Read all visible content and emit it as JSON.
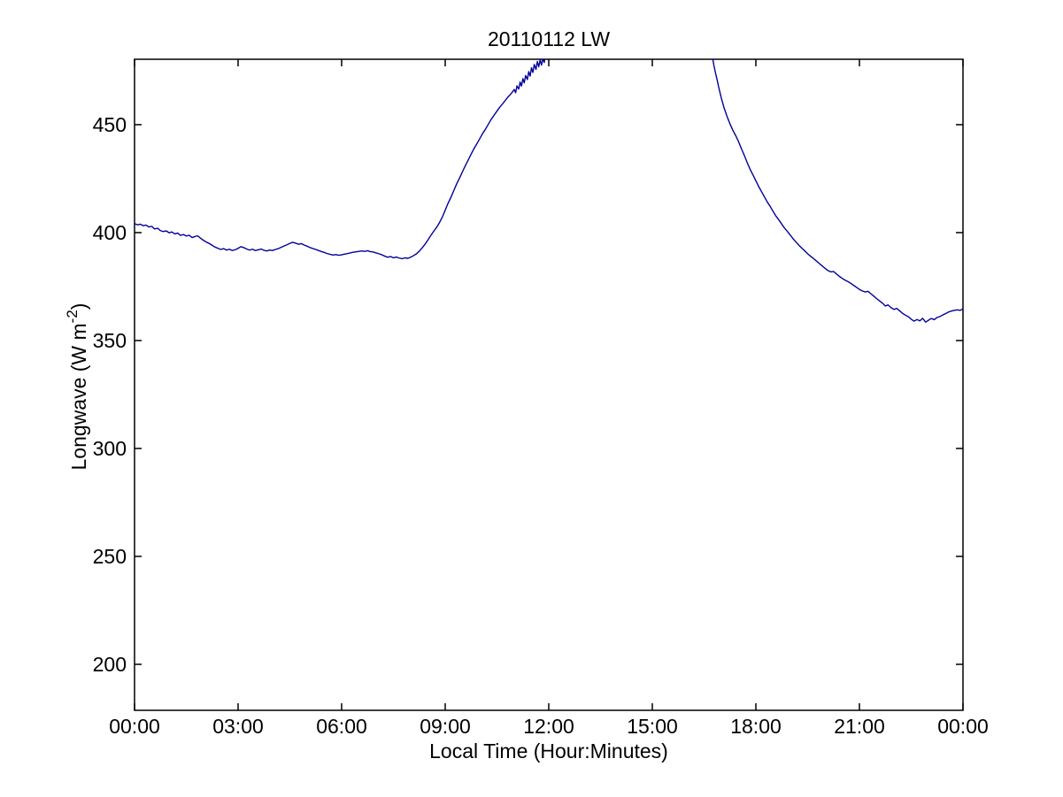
{
  "figure": {
    "background_color": "#ffffff",
    "axes_color": "#000000"
  },
  "chart_data": {
    "type": "line",
    "title": "20110112 LW",
    "xlabel": "Local Time (Hour:Minutes)",
    "ylabel": "Longwave (W m-2)",
    "ylabel_parts": {
      "main": "Longwave (W m",
      "sup": "-2",
      "close": ")"
    },
    "x_unit": "hours_local_time",
    "xlim": [
      0,
      24
    ],
    "ylim": [
      178.7,
      480.3
    ],
    "xticks": {
      "values": [
        0,
        3,
        6,
        9,
        12,
        15,
        18,
        21,
        24
      ],
      "labels": [
        "00:00",
        "03:00",
        "06:00",
        "09:00",
        "12:00",
        "15:00",
        "18:00",
        "21:00",
        "00:00"
      ]
    },
    "yticks": {
      "values": [
        200,
        250,
        300,
        350,
        400,
        450
      ],
      "labels": [
        "200",
        "250",
        "300",
        "350",
        "400",
        "450"
      ]
    },
    "grid": false,
    "legend": null,
    "box": true,
    "line_color": "#000099",
    "line_width": 1.4,
    "clipped_above_ymax": true,
    "clip_note": "curve rises above the y-axis maximum (~480) near 11:50 and re-enters near 16:45",
    "series": [
      {
        "name": "Longwave",
        "color": "#000099",
        "segments": [
          [
            [
              0.0,
              404.2
            ],
            [
              0.08,
              403.6
            ],
            [
              0.17,
              403.9
            ],
            [
              0.25,
              403.2
            ],
            [
              0.33,
              403.5
            ],
            [
              0.42,
              402.6
            ],
            [
              0.5,
              402.9
            ],
            [
              0.58,
              401.7
            ],
            [
              0.67,
              402.0
            ],
            [
              0.75,
              400.9
            ],
            [
              0.83,
              400.5
            ],
            [
              0.92,
              400.8
            ],
            [
              1.0,
              399.9
            ],
            [
              1.08,
              400.3
            ],
            [
              1.17,
              399.4
            ],
            [
              1.25,
              399.8
            ],
            [
              1.33,
              398.7
            ],
            [
              1.42,
              399.1
            ],
            [
              1.5,
              398.4
            ],
            [
              1.58,
              398.8
            ],
            [
              1.67,
              397.7
            ],
            [
              1.75,
              398.2
            ],
            [
              1.83,
              398.5
            ],
            [
              1.92,
              397.3
            ],
            [
              2.0,
              396.4
            ],
            [
              2.08,
              395.6
            ],
            [
              2.17,
              394.9
            ],
            [
              2.25,
              394.1
            ],
            [
              2.33,
              393.3
            ],
            [
              2.42,
              392.7
            ],
            [
              2.5,
              392.2
            ],
            [
              2.58,
              392.6
            ],
            [
              2.67,
              391.9
            ],
            [
              2.75,
              392.3
            ],
            [
              2.83,
              391.7
            ],
            [
              2.92,
              392.1
            ],
            [
              3.0,
              392.7
            ],
            [
              3.08,
              393.5
            ],
            [
              3.17,
              393.0
            ],
            [
              3.25,
              392.4
            ],
            [
              3.33,
              391.9
            ],
            [
              3.42,
              392.3
            ],
            [
              3.5,
              391.7
            ],
            [
              3.58,
              392.0
            ],
            [
              3.67,
              392.4
            ],
            [
              3.75,
              391.8
            ],
            [
              3.83,
              391.5
            ],
            [
              3.92,
              391.9
            ],
            [
              4.0,
              391.7
            ],
            [
              4.08,
              392.2
            ],
            [
              4.17,
              392.6
            ],
            [
              4.25,
              393.2
            ],
            [
              4.33,
              393.8
            ],
            [
              4.42,
              394.4
            ],
            [
              4.5,
              395.0
            ],
            [
              4.58,
              395.5
            ],
            [
              4.67,
              395.1
            ],
            [
              4.75,
              394.6
            ],
            [
              4.83,
              394.9
            ],
            [
              4.92,
              394.2
            ],
            [
              5.0,
              393.7
            ],
            [
              5.08,
              393.1
            ],
            [
              5.17,
              392.6
            ],
            [
              5.25,
              392.2
            ],
            [
              5.33,
              391.7
            ],
            [
              5.42,
              391.2
            ],
            [
              5.5,
              390.8
            ],
            [
              5.58,
              390.3
            ],
            [
              5.67,
              389.9
            ],
            [
              5.75,
              389.6
            ],
            [
              5.83,
              389.8
            ],
            [
              5.92,
              389.5
            ],
            [
              6.0,
              389.7
            ],
            [
              6.08,
              390.0
            ],
            [
              6.17,
              390.3
            ],
            [
              6.25,
              390.6
            ],
            [
              6.33,
              390.9
            ],
            [
              6.42,
              391.1
            ],
            [
              6.5,
              391.3
            ],
            [
              6.58,
              391.5
            ],
            [
              6.67,
              391.3
            ],
            [
              6.75,
              391.6
            ],
            [
              6.83,
              391.2
            ],
            [
              6.92,
              391.0
            ],
            [
              7.0,
              390.6
            ],
            [
              7.08,
              390.2
            ],
            [
              7.17,
              389.7
            ],
            [
              7.25,
              389.1
            ],
            [
              7.33,
              388.6
            ],
            [
              7.42,
              388.9
            ],
            [
              7.5,
              388.3
            ],
            [
              7.58,
              388.7
            ],
            [
              7.67,
              388.2
            ],
            [
              7.75,
              387.9
            ],
            [
              7.83,
              388.3
            ],
            [
              7.92,
              388.1
            ],
            [
              8.0,
              388.6
            ],
            [
              8.08,
              389.3
            ],
            [
              8.17,
              390.2
            ],
            [
              8.25,
              391.4
            ],
            [
              8.33,
              392.9
            ],
            [
              8.42,
              394.7
            ],
            [
              8.5,
              396.6
            ],
            [
              8.58,
              398.6
            ],
            [
              8.67,
              400.7
            ],
            [
              8.75,
              402.4
            ],
            [
              8.83,
              404.5
            ],
            [
              8.92,
              407.3
            ],
            [
              9.0,
              410.4
            ],
            [
              9.08,
              413.5
            ],
            [
              9.17,
              416.5
            ],
            [
              9.25,
              419.5
            ],
            [
              9.33,
              422.5
            ],
            [
              9.42,
              425.4
            ],
            [
              9.5,
              428.2
            ],
            [
              9.58,
              430.9
            ],
            [
              9.67,
              433.7
            ],
            [
              9.75,
              436.3
            ],
            [
              9.83,
              438.8
            ],
            [
              9.92,
              441.2
            ],
            [
              10.0,
              443.5
            ],
            [
              10.08,
              445.8
            ],
            [
              10.17,
              448.0
            ],
            [
              10.25,
              450.2
            ],
            [
              10.33,
              452.4
            ],
            [
              10.42,
              454.5
            ],
            [
              10.5,
              456.3
            ],
            [
              10.58,
              458.1
            ],
            [
              10.67,
              459.8
            ],
            [
              10.75,
              461.4
            ],
            [
              10.83,
              463.0
            ],
            [
              10.92,
              464.6
            ],
            [
              11.0,
              466.3
            ],
            [
              11.04,
              464.8
            ],
            [
              11.08,
              468.0
            ],
            [
              11.13,
              466.5
            ],
            [
              11.17,
              469.7
            ],
            [
              11.21,
              467.9
            ],
            [
              11.25,
              471.3
            ],
            [
              11.29,
              469.4
            ],
            [
              11.33,
              472.8
            ],
            [
              11.38,
              470.9
            ],
            [
              11.42,
              474.6
            ],
            [
              11.46,
              472.5
            ],
            [
              11.5,
              476.4
            ],
            [
              11.54,
              474.2
            ],
            [
              11.58,
              477.9
            ],
            [
              11.63,
              475.6
            ],
            [
              11.67,
              479.3
            ],
            [
              11.71,
              476.8
            ],
            [
              11.75,
              480.0
            ],
            [
              11.79,
              477.6
            ],
            [
              11.83,
              480.6
            ],
            [
              11.87,
              478.8
            ],
            [
              11.9,
              482.5
            ]
          ],
          [
            [
              16.73,
              482.5
            ],
            [
              16.78,
              477.8
            ],
            [
              16.83,
              474.0
            ],
            [
              16.88,
              470.6
            ],
            [
              16.92,
              467.6
            ],
            [
              16.96,
              464.9
            ],
            [
              17.0,
              462.3
            ],
            [
              17.08,
              457.7
            ],
            [
              17.17,
              453.6
            ],
            [
              17.25,
              450.4
            ],
            [
              17.33,
              447.5
            ],
            [
              17.42,
              444.8
            ],
            [
              17.5,
              442.1
            ],
            [
              17.58,
              438.9
            ],
            [
              17.67,
              435.6
            ],
            [
              17.75,
              432.4
            ],
            [
              17.83,
              429.4
            ],
            [
              17.92,
              426.6
            ],
            [
              18.0,
              424.0
            ],
            [
              18.08,
              421.4
            ],
            [
              18.17,
              418.8
            ],
            [
              18.25,
              416.5
            ],
            [
              18.33,
              414.2
            ],
            [
              18.42,
              412.0
            ],
            [
              18.5,
              409.8
            ],
            [
              18.58,
              407.7
            ],
            [
              18.67,
              405.8
            ],
            [
              18.75,
              403.9
            ],
            [
              18.83,
              402.1
            ],
            [
              18.92,
              400.4
            ],
            [
              19.0,
              398.8
            ],
            [
              19.08,
              397.1
            ],
            [
              19.17,
              395.5
            ],
            [
              19.25,
              394.1
            ],
            [
              19.33,
              392.8
            ],
            [
              19.42,
              391.5
            ],
            [
              19.5,
              390.2
            ],
            [
              19.58,
              389.1
            ],
            [
              19.67,
              388.0
            ],
            [
              19.75,
              386.9
            ],
            [
              19.83,
              385.8
            ],
            [
              19.92,
              384.6
            ],
            [
              20.0,
              383.5
            ],
            [
              20.08,
              382.5
            ],
            [
              20.17,
              381.8
            ],
            [
              20.25,
              382.0
            ],
            [
              20.33,
              380.9
            ],
            [
              20.42,
              379.7
            ],
            [
              20.5,
              378.8
            ],
            [
              20.58,
              378.0
            ],
            [
              20.67,
              377.3
            ],
            [
              20.75,
              376.5
            ],
            [
              20.83,
              375.6
            ],
            [
              20.92,
              374.6
            ],
            [
              21.0,
              373.7
            ],
            [
              21.08,
              373.0
            ],
            [
              21.17,
              372.5
            ],
            [
              21.25,
              372.8
            ],
            [
              21.33,
              371.7
            ],
            [
              21.42,
              370.5
            ],
            [
              21.5,
              369.4
            ],
            [
              21.58,
              368.4
            ],
            [
              21.67,
              367.3
            ],
            [
              21.75,
              366.0
            ],
            [
              21.83,
              366.5
            ],
            [
              21.92,
              365.2
            ],
            [
              22.0,
              364.4
            ],
            [
              22.08,
              364.9
            ],
            [
              22.17,
              363.7
            ],
            [
              22.25,
              362.6
            ],
            [
              22.33,
              361.8
            ],
            [
              22.42,
              361.0
            ],
            [
              22.5,
              359.9
            ],
            [
              22.58,
              359.0
            ],
            [
              22.67,
              359.7
            ],
            [
              22.75,
              359.1
            ],
            [
              22.83,
              360.3
            ],
            [
              22.92,
              358.5
            ],
            [
              23.0,
              359.4
            ],
            [
              23.08,
              360.2
            ],
            [
              23.17,
              359.7
            ],
            [
              23.25,
              360.7
            ],
            [
              23.33,
              361.1
            ],
            [
              23.42,
              361.9
            ],
            [
              23.5,
              362.5
            ],
            [
              23.58,
              363.2
            ],
            [
              23.67,
              363.7
            ],
            [
              23.75,
              364.0
            ],
            [
              23.83,
              364.2
            ],
            [
              23.92,
              364.0
            ],
            [
              24.0,
              364.7
            ]
          ]
        ]
      }
    ]
  }
}
